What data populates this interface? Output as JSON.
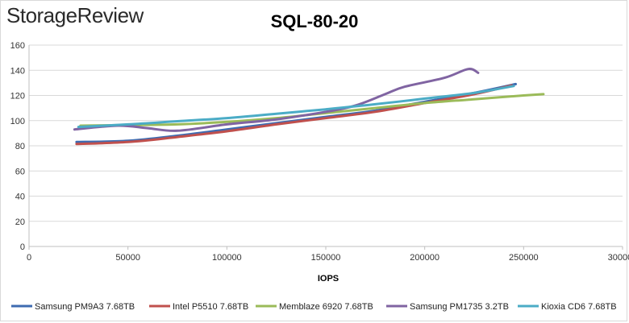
{
  "brand": {
    "logo_text": "StorageReview"
  },
  "colors": {
    "Samsung PM9A3 7.68TB": "#3e6bb0",
    "Intel P5510 7.68TB": "#c0504d",
    "Memblaze 6920 7.68TB": "#9bbb59",
    "Samsung PM1735 3.2TB": "#8064a2",
    "Kioxia CD6 7.68TB": "#4bacc6"
  },
  "chart_data": {
    "type": "line",
    "title": "SQL-80-20",
    "xlabel": "IOPS",
    "ylabel": "",
    "xlim": [
      0,
      300000
    ],
    "ylim": [
      0,
      160
    ],
    "x_ticks": [
      "0",
      "50000",
      "100000",
      "150000",
      "200000",
      "250000",
      "300000"
    ],
    "y_ticks": [
      "0",
      "20",
      "40",
      "60",
      "80",
      "100",
      "120",
      "140",
      "160"
    ],
    "grid": true,
    "legend_position": "bottom",
    "series": [
      {
        "name": "Samsung PM9A3 7.68TB",
        "x": [
          24000,
          50000,
          75000,
          100000,
          125000,
          150000,
          175000,
          200000,
          225000,
          246000
        ],
        "y": [
          83,
          84,
          88,
          93,
          98,
          103,
          108,
          115,
          122,
          129
        ]
      },
      {
        "name": "Intel P5510 7.68TB",
        "x": [
          24000,
          50000,
          75000,
          100000,
          125000,
          150000,
          175000,
          200000,
          225000,
          244000
        ],
        "y": [
          81.5,
          83,
          87,
          91.5,
          97,
          102,
          107,
          114,
          121,
          128
        ]
      },
      {
        "name": "Memblaze 6920 7.68TB",
        "x": [
          26000,
          50000,
          75000,
          100000,
          125000,
          150000,
          175000,
          200000,
          225000,
          250000,
          260000
        ],
        "y": [
          96,
          96.5,
          97,
          99,
          102,
          106,
          110,
          114,
          117,
          120,
          121
        ]
      },
      {
        "name": "Samsung PM1735 3.2TB",
        "x": [
          23000,
          45000,
          60000,
          75000,
          100000,
          125000,
          150000,
          165000,
          180000,
          190000,
          210000,
          222000,
          227000
        ],
        "y": [
          93,
          96,
          94,
          92,
          97,
          101,
          107,
          112,
          121,
          127,
          134,
          141,
          138
        ]
      },
      {
        "name": "Kioxia CD6 7.68TB",
        "x": [
          25000,
          50000,
          75000,
          100000,
          125000,
          150000,
          175000,
          200000,
          225000,
          245000
        ],
        "y": [
          95,
          97,
          99.5,
          102,
          105.5,
          109,
          113,
          117.5,
          122,
          127.5
        ]
      }
    ]
  }
}
